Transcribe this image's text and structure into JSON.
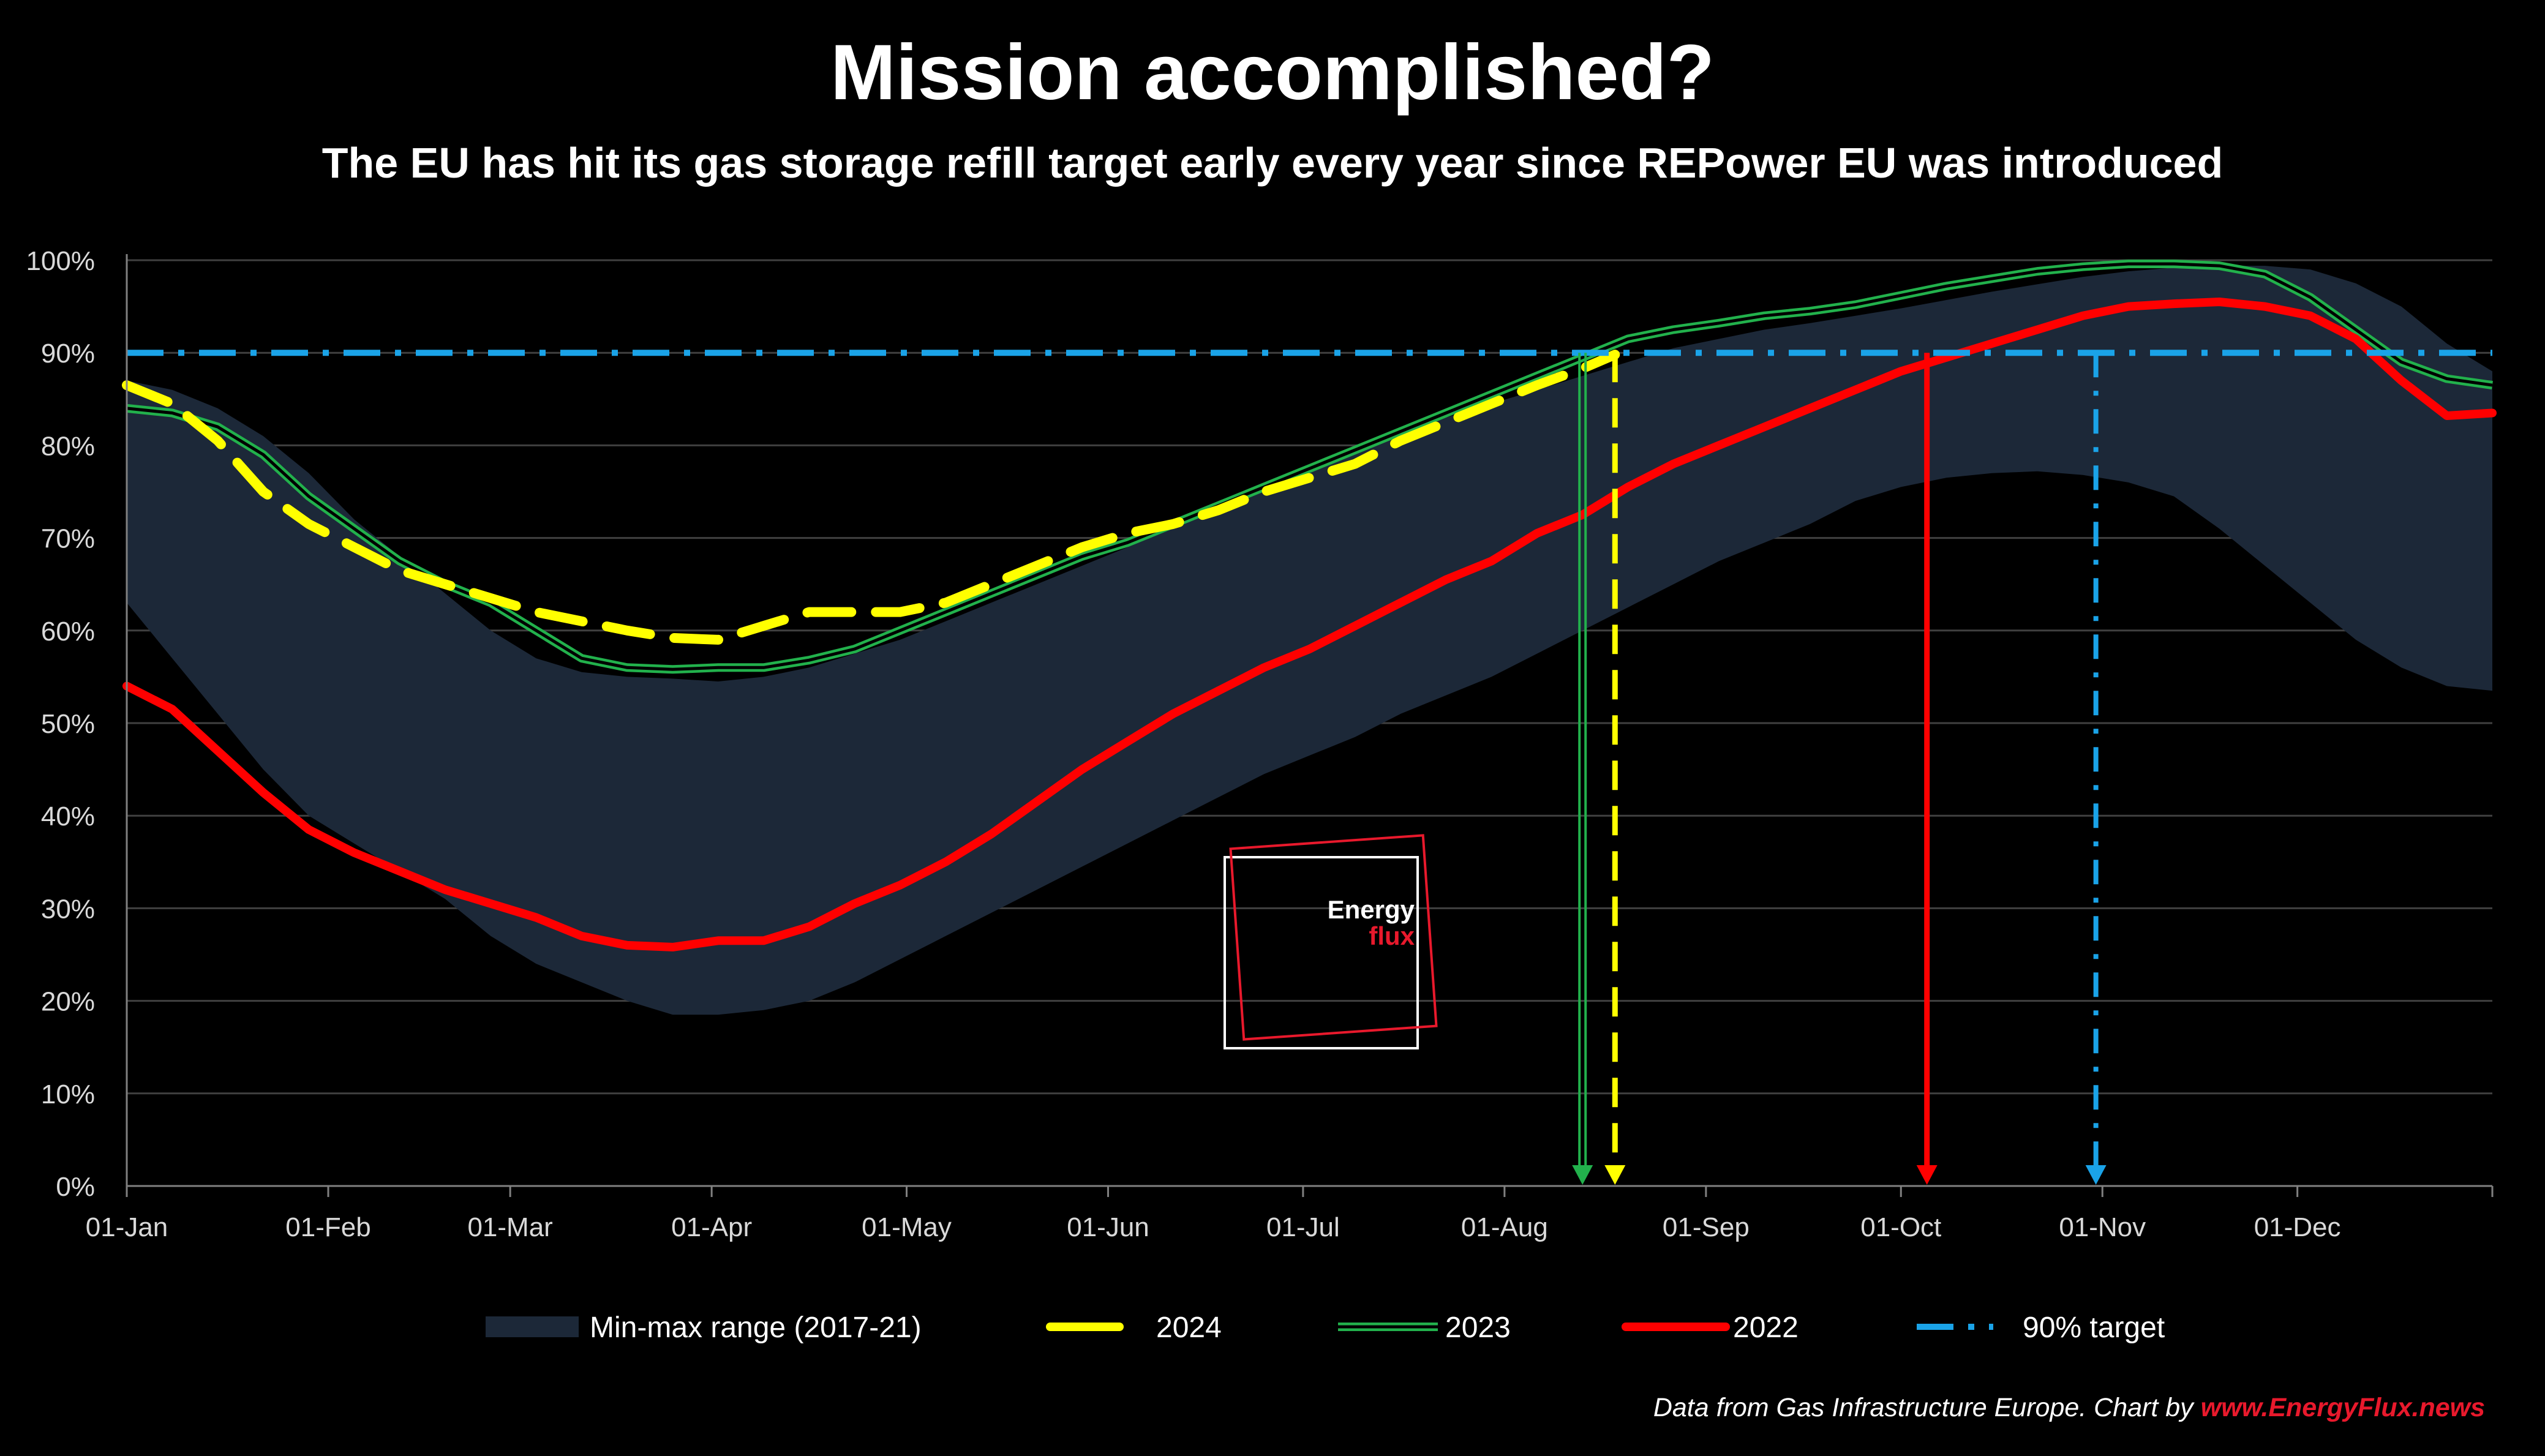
{
  "chart_data": {
    "type": "line",
    "title": "Mission accomplished?",
    "subtitle": "The EU has hit its gas storage refill target early every year since REPower EU was introduced",
    "xlabel": "",
    "ylabel": "",
    "x_unit": "day of year",
    "xlim": [
      1,
      365
    ],
    "ylim": [
      0,
      100
    ],
    "y_ticks": [
      0,
      10,
      20,
      30,
      40,
      50,
      60,
      70,
      80,
      90,
      100
    ],
    "y_tick_labels": [
      "0%",
      "10%",
      "20%",
      "30%",
      "40%",
      "50%",
      "60%",
      "70%",
      "80%",
      "90%",
      "100%"
    ],
    "x_ticks": [
      1,
      32,
      60,
      91,
      121,
      152,
      182,
      213,
      244,
      274,
      305,
      335
    ],
    "x_tick_labels": [
      "01-Jan",
      "01-Feb",
      "01-Mar",
      "01-Apr",
      "01-May",
      "01-Jun",
      "01-Jul",
      "01-Aug",
      "01-Sep",
      "01-Oct",
      "01-Nov",
      "01-Dec"
    ],
    "grid": true,
    "legend_position": "bottom",
    "range_band": {
      "name": "Min-max range (2017-21)",
      "color": "#1c2838",
      "x": [
        1,
        8,
        15,
        22,
        29,
        36,
        43,
        50,
        57,
        64,
        71,
        78,
        85,
        92,
        99,
        106,
        113,
        120,
        127,
        134,
        141,
        148,
        155,
        162,
        169,
        176,
        183,
        190,
        197,
        204,
        211,
        218,
        225,
        232,
        239,
        246,
        253,
        260,
        267,
        274,
        281,
        288,
        295,
        302,
        309,
        316,
        323,
        330,
        337,
        344,
        351,
        358,
        365
      ],
      "max": [
        87,
        86,
        84,
        81,
        77,
        72,
        68,
        64,
        60,
        57,
        55.5,
        55,
        54.8,
        54.5,
        55,
        56,
        57.5,
        59,
        61,
        63,
        65,
        67,
        69,
        71,
        73,
        75.5,
        77.5,
        79.5,
        81.5,
        83,
        84.5,
        86,
        87.5,
        89,
        90.5,
        91.5,
        92.5,
        93.2,
        94,
        94.8,
        95.7,
        96.6,
        97.4,
        98.2,
        98.8,
        99.2,
        99.4,
        99.4,
        99,
        97.5,
        95,
        91,
        88
      ],
      "min": [
        63,
        57,
        51,
        45,
        40,
        37,
        34,
        31,
        27,
        24,
        22,
        20,
        18.5,
        18.5,
        19,
        20,
        22,
        24.5,
        27,
        29.5,
        32,
        34.5,
        37,
        39.5,
        42,
        44.5,
        46.5,
        48.5,
        51,
        53,
        55,
        57.5,
        60,
        62.5,
        65,
        67.5,
        69.5,
        71.5,
        74,
        75.5,
        76.5,
        77,
        77.2,
        76.8,
        76,
        74.5,
        71,
        67,
        63,
        59,
        56,
        54,
        53.5
      ]
    },
    "series": [
      {
        "name": "2024",
        "color": "#ffff00",
        "style": "dashed",
        "x": [
          1,
          8,
          15,
          22,
          29,
          36,
          43,
          50,
          57,
          64,
          71,
          78,
          85,
          92,
          99,
          106,
          113,
          120,
          127,
          134,
          141,
          148,
          155,
          162,
          169,
          176,
          183,
          190,
          197,
          204,
          211,
          218,
          225,
          230
        ],
        "values": [
          86.5,
          84.5,
          80.5,
          75,
          71.5,
          69,
          66.5,
          65,
          63.5,
          62,
          61,
          60,
          59.2,
          59,
          60.5,
          62,
          62,
          62,
          63,
          65,
          67,
          69,
          70.5,
          71.5,
          73,
          75,
          76.5,
          78,
          80.5,
          82.5,
          84.5,
          86.5,
          88.3,
          89.8
        ]
      },
      {
        "name": "2023",
        "color": "#22b14c",
        "style": "double",
        "x": [
          1,
          8,
          15,
          22,
          29,
          36,
          43,
          50,
          57,
          64,
          71,
          78,
          85,
          92,
          99,
          106,
          113,
          120,
          127,
          134,
          141,
          148,
          155,
          162,
          169,
          176,
          183,
          190,
          197,
          204,
          211,
          218,
          225,
          232,
          239,
          246,
          253,
          260,
          267,
          274,
          281,
          288,
          295,
          302,
          309,
          316,
          323,
          330,
          337,
          344,
          351,
          358,
          365
        ],
        "values": [
          84,
          83.5,
          82,
          79,
          74.5,
          71,
          67.5,
          65,
          63,
          60,
          57,
          56,
          55.8,
          56,
          56,
          56.8,
          58,
          60,
          62,
          64,
          66,
          68,
          69.5,
          71.5,
          73.5,
          75.5,
          77.5,
          79.5,
          81.5,
          83.5,
          85.5,
          87.5,
          89.5,
          91.5,
          92.5,
          93.2,
          94,
          94.5,
          95.2,
          96.2,
          97.2,
          98,
          98.8,
          99.3,
          99.6,
          99.6,
          99.4,
          98.5,
          96,
          92.5,
          89,
          87.2,
          86.5
        ]
      },
      {
        "name": "2022",
        "color": "#ff0000",
        "style": "solid",
        "x": [
          1,
          8,
          15,
          22,
          29,
          36,
          43,
          50,
          57,
          64,
          71,
          78,
          85,
          92,
          99,
          106,
          113,
          120,
          127,
          134,
          141,
          148,
          155,
          162,
          169,
          176,
          183,
          190,
          197,
          204,
          211,
          218,
          225,
          232,
          239,
          246,
          253,
          260,
          267,
          274,
          281,
          288,
          295,
          302,
          309,
          316,
          323,
          330,
          337,
          344,
          351,
          358,
          365
        ],
        "values": [
          54,
          51.5,
          47,
          42.5,
          38.5,
          36,
          34,
          32,
          30.5,
          29,
          27,
          26,
          25.8,
          26.5,
          26.5,
          28,
          30.5,
          32.5,
          35,
          38,
          41.5,
          45,
          48,
          51,
          53.5,
          56,
          58,
          60.5,
          63,
          65.5,
          67.5,
          70.5,
          72.5,
          75.5,
          78,
          80,
          82,
          84,
          86,
          88,
          89.5,
          91,
          92.5,
          94,
          95,
          95.3,
          95.5,
          95,
          94,
          91.5,
          87,
          83.2,
          83.5
        ]
      },
      {
        "name": "90% target",
        "color": "#1aa3e8",
        "style": "dash-dot",
        "x": [
          1,
          365
        ],
        "values": [
          90,
          90
        ]
      }
    ],
    "target_markers": [
      {
        "series": "2023",
        "x": 225,
        "value": 90,
        "color": "#22b14c"
      },
      {
        "series": "2024",
        "x": 230,
        "value": 90,
        "color": "#ffff00"
      },
      {
        "series": "2022",
        "x": 278,
        "value": 90,
        "color": "#ff0000"
      },
      {
        "series": "90% target",
        "x": 304,
        "value": 90,
        "color": "#1aa3e8"
      }
    ]
  },
  "logo": {
    "word1": "Energy",
    "word2": "flux"
  },
  "source": {
    "prefix": "Data from Gas Infrastructure Europe. Chart by ",
    "link": "www.EnergyFlux.news"
  },
  "colors": {
    "background": "#000000",
    "grid": "#404040",
    "text": "#ffffff",
    "tick_text": "#d9d9d9",
    "brand_red": "#e8192c"
  }
}
